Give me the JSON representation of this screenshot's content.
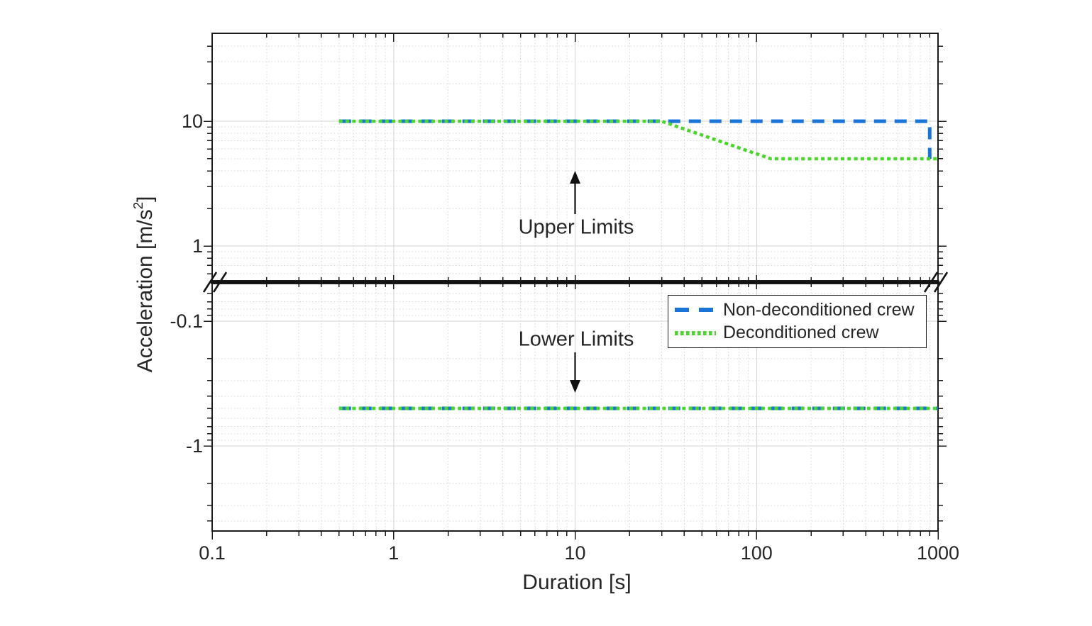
{
  "figure": {
    "background": "#ffffff",
    "text_color": "#262626",
    "ylabel_parts": {
      "prefix": "Acceleration [m/s",
      "sup": "2",
      "suffix": "]"
    }
  },
  "chart_data": {
    "type": "line",
    "title": "",
    "xlabel": "Duration [s]",
    "ylabel": "Acceleration [m/s^2]",
    "x_scale": "log",
    "x_range": [
      0.1,
      1000
    ],
    "x_tick_values": [
      0.1,
      1,
      10,
      100,
      1000
    ],
    "x_tick_labels": [
      "0.1",
      "1",
      "10",
      "100",
      "1000"
    ],
    "grid": "major solid light gray, minor dotted light gray, on",
    "broken_y_axis": true,
    "panels": [
      {
        "id": "upper",
        "y_scale": "log",
        "y_range_approx": [
          0.5,
          50
        ],
        "y_tick_values": [
          1,
          10
        ],
        "y_tick_labels": [
          "1",
          "10"
        ]
      },
      {
        "id": "lower",
        "y_scale": "negative-log",
        "y_range_approx": [
          -0.05,
          -5
        ],
        "y_tick_values": [
          -0.1,
          -1
        ],
        "y_tick_labels": [
          "-0.1",
          "-1"
        ]
      }
    ],
    "series": [
      {
        "name": "Non-deconditioned crew",
        "color": "#1a74d8",
        "line_style": "dashed",
        "upper_limit_points": [
          [
            0.5,
            10
          ],
          [
            900,
            10
          ],
          [
            900,
            5
          ]
        ],
        "lower_limit_points": [
          [
            0.5,
            -0.5
          ],
          [
            1000,
            -0.5
          ]
        ]
      },
      {
        "name": "Deconditioned crew",
        "color": "#4bd62c",
        "line_style": "dotted",
        "upper_limit_points": [
          [
            0.5,
            10
          ],
          [
            30,
            10
          ],
          [
            120,
            5
          ],
          [
            1000,
            5
          ]
        ],
        "lower_limit_points": [
          [
            0.5,
            -0.5
          ],
          [
            1000,
            -0.5
          ]
        ]
      }
    ],
    "annotations": [
      {
        "text": "Upper Limits",
        "arrow": "up",
        "arrow_x": 10,
        "panel": "upper"
      },
      {
        "text": "Lower Limits",
        "arrow": "down",
        "arrow_x": 10,
        "panel": "lower"
      }
    ],
    "legend": {
      "position": "top-right of lower panel",
      "entries": [
        "Non-deconditioned crew",
        "Deconditioned crew"
      ]
    }
  }
}
